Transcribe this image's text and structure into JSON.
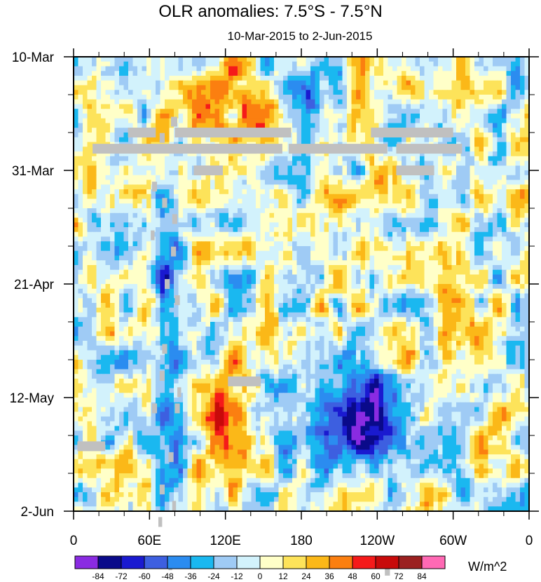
{
  "chart_data": {
    "type": "heatmap",
    "title": "OLR anomalies: 7.5°S - 7.5°N",
    "subtitle": "10-Mar-2015 to 2-Jun-2015",
    "xlabel": "",
    "ylabel": "",
    "x_ticks": [
      "0",
      "60E",
      "120E",
      "180",
      "120W",
      "60W",
      "0"
    ],
    "x_range_degrees_east": [
      0,
      360
    ],
    "y_ticks": [
      "10-Mar",
      "31-Mar",
      "21-Apr",
      "12-May",
      "2-Jun"
    ],
    "time_range": [
      "10-Mar-2015",
      "2-Jun-2015"
    ],
    "units": "W/m^2",
    "contour_levels": [
      -84,
      -72,
      -60,
      -48,
      -36,
      -24,
      -12,
      0,
      12,
      24,
      36,
      48,
      60,
      72,
      84
    ],
    "colorbar_colors": [
      "#8a2be2",
      "#0a0a8a",
      "#1a1ad0",
      "#3d5fe0",
      "#2b8cf0",
      "#1ab8f0",
      "#9fcbf5",
      "#d2f2fc",
      "#ffffc8",
      "#fde35a",
      "#fbb818",
      "#fb7f10",
      "#f51a1a",
      "#c80a0a",
      "#9b2020",
      "#ff69b4"
    ],
    "missing_color": "#c0c0c0",
    "features": [
      {
        "description": "positive anomaly (suppressed convection)",
        "lon_range": [
          90,
          150
        ],
        "dates": [
          "10-Mar",
          "31-Mar"
        ],
        "value": 36
      },
      {
        "description": "positive anomaly",
        "lon_range": [
          100,
          150
        ],
        "dates": [
          "5-May",
          "30-May"
        ],
        "value": 36
      },
      {
        "description": "negative anomaly (enhanced convection)",
        "lon_range": [
          175,
          200
        ],
        "dates": [
          "10-Mar",
          "31-Mar"
        ],
        "value": -48
      },
      {
        "description": "negative anomaly",
        "lon_range": [
          65,
          90
        ],
        "dates": [
          "31-Mar",
          "25-May"
        ],
        "value": -48
      },
      {
        "description": "negative anomaly",
        "lon_range": [
          180,
          260
        ],
        "dates": [
          "5-May",
          "25-May"
        ],
        "value": -60
      }
    ]
  }
}
